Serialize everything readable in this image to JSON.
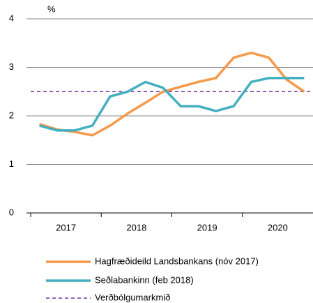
{
  "chart_data": {
    "type": "line",
    "unit_label": "%",
    "x_labels": [
      "2017",
      "2018",
      "2019",
      "2020"
    ],
    "series": [
      {
        "name": "Hagfræðideild Landsbankans (nóv 2017)",
        "color": "#f59a4a",
        "values": [
          1.83,
          1.72,
          1.67,
          1.6,
          1.8,
          2.05,
          2.27,
          2.5,
          2.6,
          2.7,
          2.78,
          3.2,
          3.3,
          3.2,
          2.75,
          2.5
        ]
      },
      {
        "name": "Seðlabankinn (feb 2018)",
        "color": "#43afc0",
        "values": [
          1.8,
          1.7,
          1.7,
          1.8,
          2.4,
          2.5,
          2.7,
          2.58,
          2.2,
          2.2,
          2.1,
          2.2,
          2.7,
          2.78,
          2.78,
          2.78
        ]
      }
    ],
    "reference_line": {
      "name": "Verðbólgumarkmið",
      "value": 2.5,
      "color": "#7030a0"
    },
    "ylim": [
      0,
      4
    ],
    "yticks": [
      0,
      1,
      2,
      3,
      4
    ],
    "grid": true
  }
}
